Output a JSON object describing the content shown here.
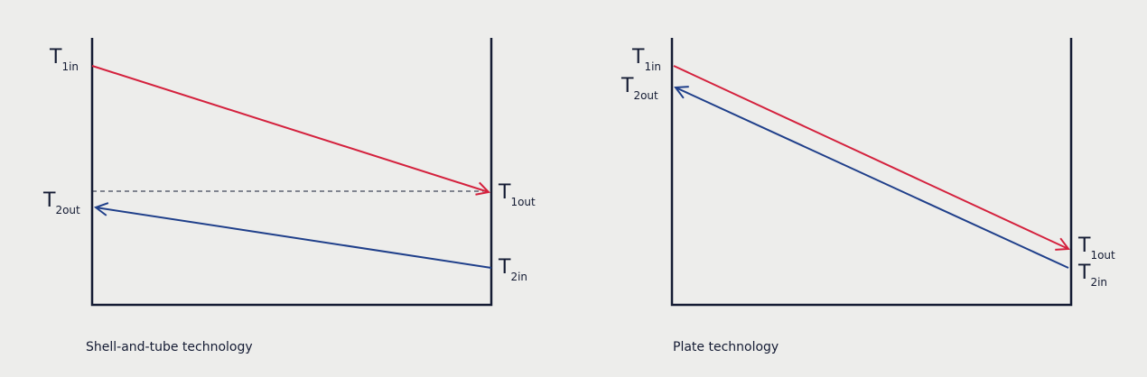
{
  "panels": [
    {
      "caption": "Shell-and-tube technology",
      "labels": [
        {
          "symbol": "T",
          "subscript": "1in"
        },
        {
          "symbol": "T",
          "subscript": "2out"
        },
        {
          "symbol": "T",
          "subscript": "1out"
        },
        {
          "symbol": "T",
          "subscript": "2in"
        }
      ]
    },
    {
      "caption": "Plate technology",
      "labels": [
        {
          "symbol": "T",
          "subscript": "1in"
        },
        {
          "symbol": "T",
          "subscript": "2out"
        },
        {
          "symbol": "T",
          "subscript": "1out"
        },
        {
          "symbol": "T",
          "subscript": "2in"
        }
      ]
    }
  ]
}
